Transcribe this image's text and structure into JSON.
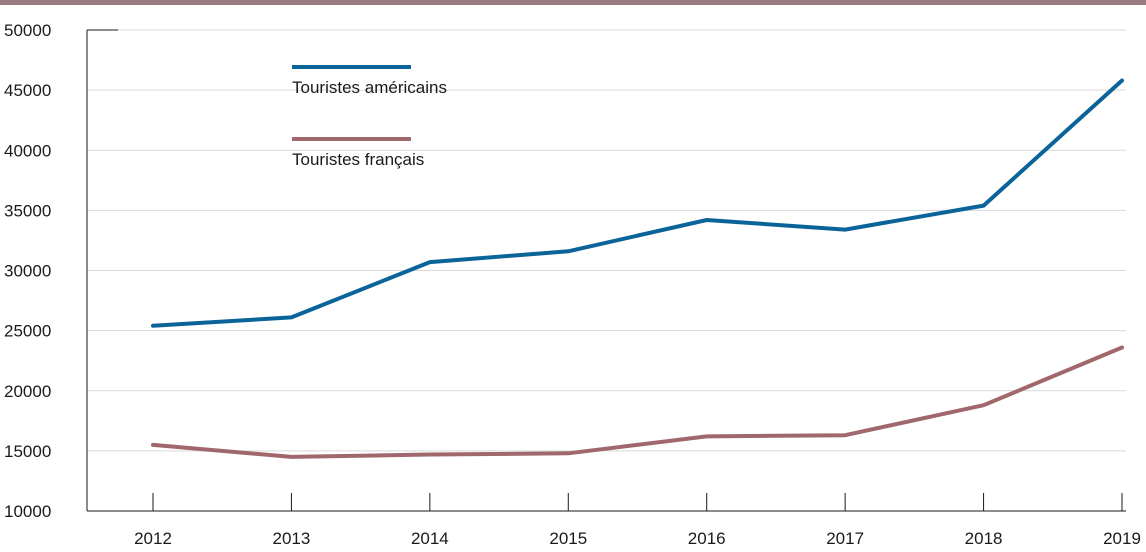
{
  "colors": {
    "top_rule": "#9c7a82",
    "grid": "#d9d9d9",
    "axis": "#1a1a1a"
  },
  "chart_data": {
    "type": "line",
    "x": [
      "2012",
      "2013",
      "2014",
      "2015",
      "2016",
      "2017",
      "2018",
      "2019"
    ],
    "ylim": [
      10000,
      50000
    ],
    "yticks": [
      10000,
      15000,
      20000,
      25000,
      30000,
      35000,
      40000,
      45000,
      50000
    ],
    "grid": true,
    "legend_position": "top-left",
    "series": [
      {
        "name": "Touristes américains",
        "color": "#0a6499",
        "values": [
          25400,
          26100,
          30700,
          31600,
          34200,
          33400,
          35400,
          45800
        ]
      },
      {
        "name": "Touristes français",
        "color": "#a0676c",
        "values": [
          15500,
          14500,
          14700,
          14800,
          16200,
          16300,
          18800,
          23600
        ]
      }
    ]
  }
}
